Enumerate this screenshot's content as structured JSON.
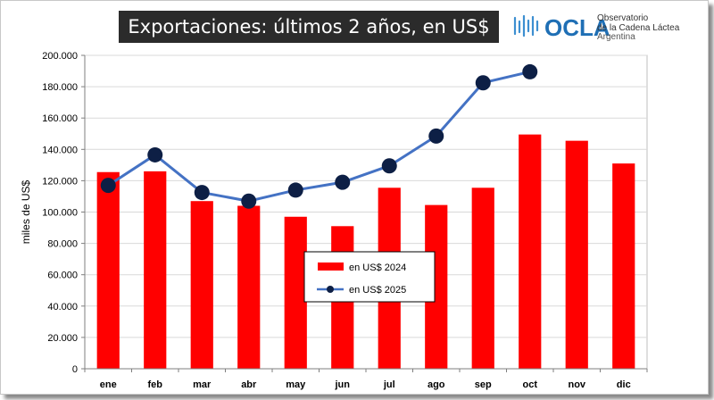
{
  "header": {
    "title": "Exportaciones: últimos 2 años, en US$"
  },
  "logo": {
    "name": "OCLA",
    "line1": "Observatorio",
    "line2": "de la Cadena Láctea",
    "line3": "Argentina",
    "color": "#1f6fb5"
  },
  "chart_data": {
    "type": "bar",
    "title": "Exportaciones: últimos 2 años, en US$",
    "xlabel": "",
    "ylabel": "miles de US$",
    "ylim": [
      0,
      200000
    ],
    "yticks": [
      0,
      20000,
      40000,
      60000,
      80000,
      100000,
      120000,
      140000,
      160000,
      180000,
      200000
    ],
    "ytick_labels": [
      "0",
      "20.000",
      "40.000",
      "60.000",
      "80.000",
      "100.000",
      "120.000",
      "140.000",
      "160.000",
      "180.000",
      "200.000"
    ],
    "categories": [
      "ene",
      "feb",
      "mar",
      "abr",
      "may",
      "jun",
      "jul",
      "ago",
      "sep",
      "oct",
      "nov",
      "dic"
    ],
    "grid": true,
    "legend_position": "bottom-center",
    "series": [
      {
        "name": "en US$ 2024",
        "type": "bar",
        "color": "#ff0000",
        "values": [
          125500,
          126000,
          107000,
          104000,
          97000,
          91000,
          115500,
          104500,
          115500,
          149500,
          145500,
          131000
        ]
      },
      {
        "name": "en US$ 2025",
        "type": "line",
        "color": "#4472c4",
        "marker_color": "#0d1f45",
        "values": [
          117000,
          136500,
          112500,
          107000,
          114000,
          119000,
          129500,
          148500,
          182500,
          189500,
          null,
          null
        ]
      }
    ]
  }
}
